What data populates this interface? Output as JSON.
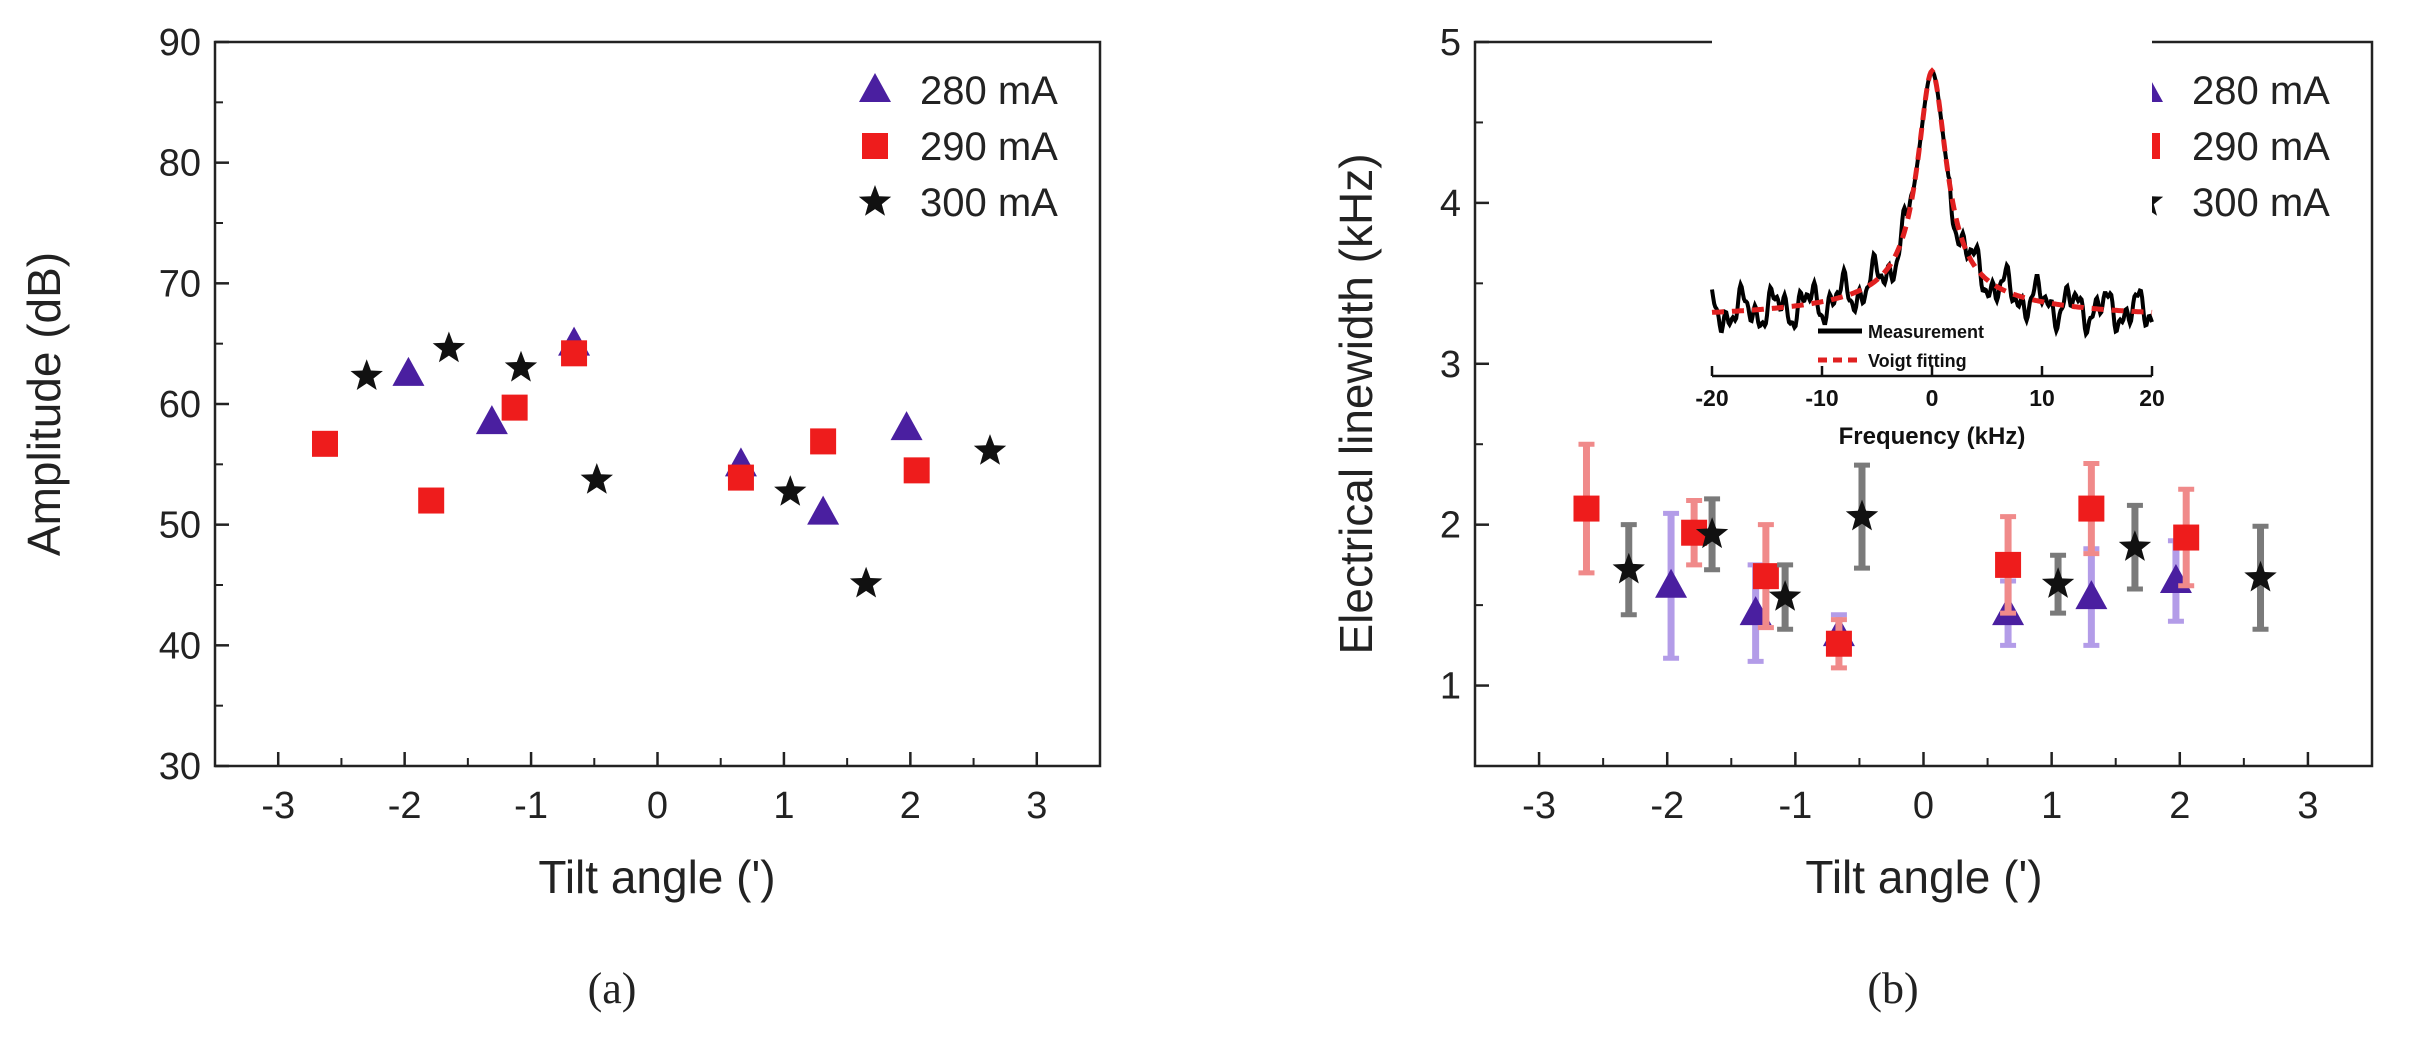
{
  "chart_data": [
    {
      "type": "scatter",
      "panel": "a",
      "caption": "(a)",
      "xlabel": "Tilt angle (')",
      "ylabel": "Amplitude (dB)",
      "xlim": [
        -3.5,
        3.5
      ],
      "ylim": [
        30,
        90
      ],
      "xticks": [
        -3,
        -2,
        -1,
        0,
        1,
        2,
        3
      ],
      "yticks": [
        30,
        40,
        50,
        60,
        70,
        80,
        90
      ],
      "legend_position": "top-right",
      "series": [
        {
          "name": "280 mA",
          "marker": "triangle",
          "color": "#4a1fa0",
          "x": [
            -1.97,
            -1.31,
            -0.66,
            0.66,
            1.31,
            1.97
          ],
          "y": [
            62.5,
            58.5,
            65,
            55,
            51,
            58
          ]
        },
        {
          "name": "290 mA",
          "marker": "square",
          "color": "#ee1c1c",
          "x": [
            -2.63,
            -1.79,
            -1.13,
            -0.66,
            0.66,
            1.31,
            2.05
          ],
          "y": [
            56.7,
            52,
            59.7,
            64.2,
            53.9,
            56.9,
            54.5
          ]
        },
        {
          "name": "300 mA",
          "marker": "star",
          "color": "#111111",
          "x": [
            -2.3,
            -1.65,
            -1.08,
            -0.48,
            1.05,
            1.65,
            2.63
          ],
          "y": [
            62.3,
            64.6,
            63,
            53.7,
            52.7,
            45.1,
            56.1
          ]
        }
      ]
    },
    {
      "type": "scatter",
      "panel": "b",
      "caption": "(b)",
      "xlabel": "Tilt angle (')",
      "ylabel": "Electrical linewidth (kHz)",
      "xlim": [
        -3.5,
        3.5
      ],
      "ylim": [
        0.5,
        5
      ],
      "xticks": [
        -3,
        -2,
        -1,
        0,
        1,
        2,
        3
      ],
      "yticks": [
        1,
        2,
        3,
        4,
        5
      ],
      "legend_position": "top-right",
      "series": [
        {
          "name": "280 mA",
          "marker": "triangle",
          "color": "#4a1fa0",
          "errorbar_color": "#b39ce8",
          "x": [
            -1.97,
            -1.31,
            -0.66,
            0.66,
            1.31,
            1.97
          ],
          "y": [
            1.62,
            1.45,
            1.32,
            1.45,
            1.55,
            1.65
          ],
          "err": [
            0.45,
            0.3,
            0.12,
            0.2,
            0.3,
            0.25
          ]
        },
        {
          "name": "290 mA",
          "marker": "square",
          "color": "#ee1c1c",
          "errorbar_color": "#f08a8a",
          "x": [
            -2.63,
            -1.79,
            -1.23,
            -0.66,
            0.66,
            1.31,
            2.05
          ],
          "y": [
            2.1,
            1.95,
            1.68,
            1.26,
            1.75,
            2.1,
            1.92
          ],
          "err": [
            0.4,
            0.2,
            0.32,
            0.15,
            0.3,
            0.28,
            0.3
          ]
        },
        {
          "name": "300 mA",
          "marker": "star",
          "color": "#111111",
          "errorbar_color": "#7a7a7a",
          "x": [
            -2.3,
            -1.65,
            -1.08,
            -0.48,
            1.05,
            1.65,
            2.63
          ],
          "y": [
            1.72,
            1.94,
            1.55,
            2.05,
            1.63,
            1.86,
            1.67
          ],
          "err": [
            0.28,
            0.22,
            0.2,
            0.32,
            0.18,
            0.26,
            0.32
          ]
        }
      ],
      "inset": {
        "type": "line",
        "xlabel": "Frequency (kHz)",
        "xlim": [
          -20,
          20
        ],
        "xticks": [
          -20,
          -10,
          0,
          10,
          20
        ],
        "legend": [
          "Measurement",
          "Voigt fitting"
        ],
        "voigt_center": 0,
        "voigt_gamma": 1.6,
        "series_colors": [
          "#000000",
          "#e02020"
        ]
      }
    }
  ]
}
